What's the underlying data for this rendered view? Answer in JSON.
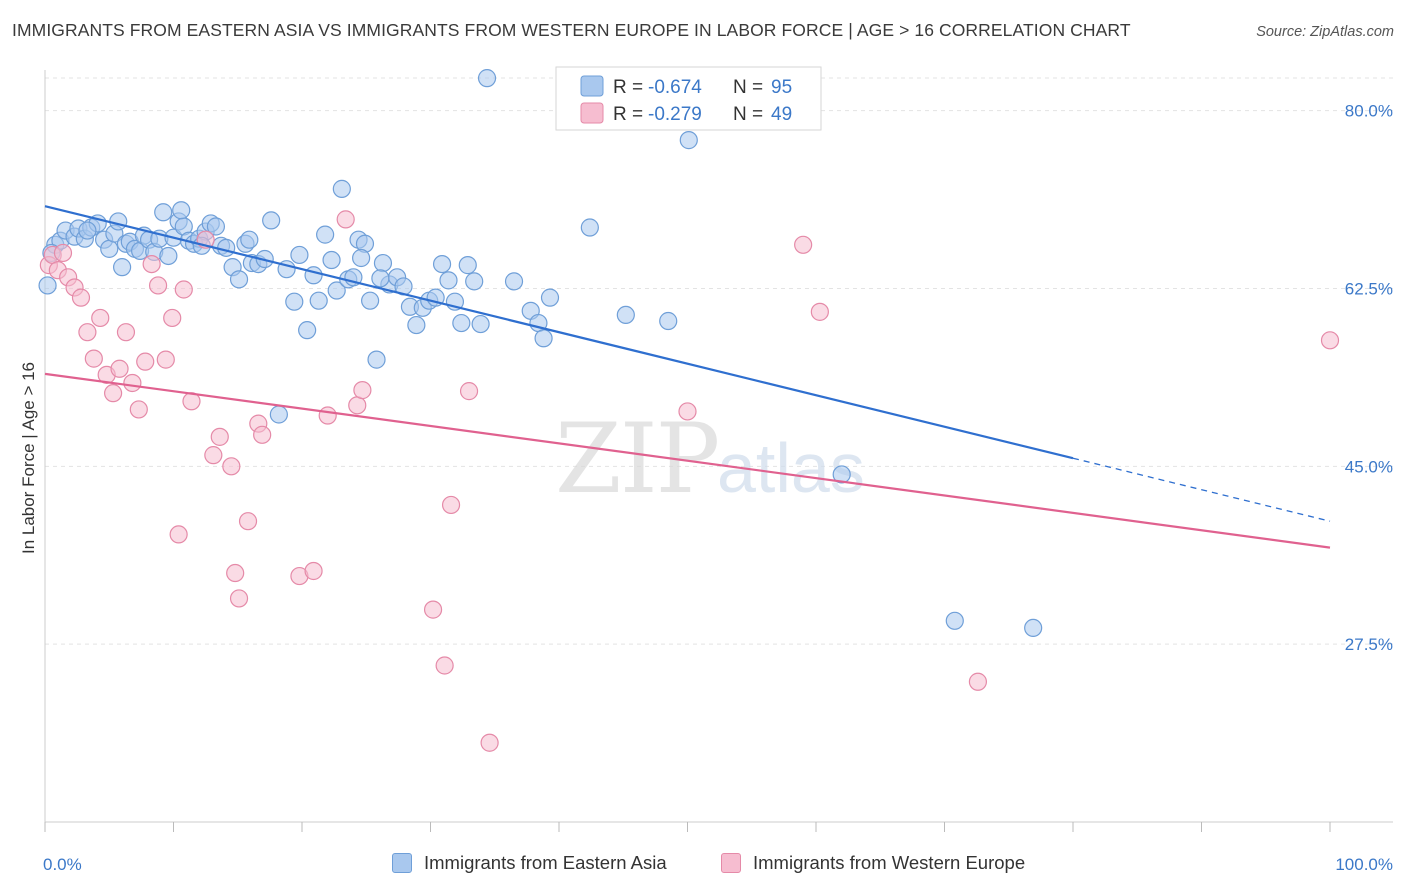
{
  "title": "IMMIGRANTS FROM EASTERN ASIA VS IMMIGRANTS FROM WESTERN EUROPE IN LABOR FORCE | AGE > 16 CORRELATION CHART",
  "source": "Source: ZipAtlas.com",
  "watermark": {
    "zip": "ZIP",
    "atlas": "atlas"
  },
  "colors": {
    "blue_fill": "#a9c8ee",
    "blue_stroke": "#6f9fd8",
    "blue_line": "#2f6fcf",
    "pink_fill": "#f6bdd0",
    "pink_stroke": "#e58aa8",
    "pink_line": "#e0618f",
    "tick_text": "#3b78c8",
    "grid": "#e3e3e3"
  },
  "legend": {
    "rows": [
      {
        "r_label": "R =",
        "r_value": "-0.674",
        "n_label": "N =",
        "n_value": "95"
      },
      {
        "r_label": "R =",
        "r_value": "-0.279",
        "n_label": "N =",
        "n_value": "49"
      }
    ]
  },
  "chart_data": {
    "type": "scatter",
    "title": "IMMIGRANTS FROM EASTERN ASIA VS IMMIGRANTS FROM WESTERN EUROPE IN LABOR FORCE | AGE > 16 CORRELATION CHART",
    "xlabel": "",
    "ylabel": "In Labor Force | Age > 16",
    "xlim": [
      0,
      100
    ],
    "ylim": [
      10,
      84
    ],
    "x_tick_labels": [
      "0.0%",
      "100.0%"
    ],
    "y_ticks": [
      27.5,
      45.0,
      62.5,
      80.0
    ],
    "y_tick_labels": [
      "27.5%",
      "45.0%",
      "62.5%",
      "80.0%"
    ],
    "grid": true,
    "legend_position": "top-center",
    "series": [
      {
        "name": "Immigrants from Eastern Asia",
        "color": "blue",
        "r": -0.674,
        "n": 95,
        "trend": {
          "x0": 0,
          "y0": 70.6,
          "x1": 80,
          "y1": 45.8,
          "dashed_to_x": 100,
          "dashed_to_y": 39.6
        },
        "points": [
          [
            0.2,
            62.8
          ],
          [
            0.8,
            66.8
          ],
          [
            1.2,
            67.2
          ],
          [
            1.6,
            68.2
          ],
          [
            2.3,
            67.6
          ],
          [
            2.6,
            68.4
          ],
          [
            3.1,
            67.4
          ],
          [
            3.6,
            68.5
          ],
          [
            4.1,
            68.9
          ],
          [
            4.6,
            67.3
          ],
          [
            5.0,
            66.4
          ],
          [
            5.4,
            67.9
          ],
          [
            5.7,
            69.1
          ],
          [
            6.0,
            64.6
          ],
          [
            6.3,
            66.9
          ],
          [
            6.6,
            67.1
          ],
          [
            7.0,
            66.4
          ],
          [
            7.4,
            66.2
          ],
          [
            7.7,
            67.7
          ],
          [
            8.1,
            67.3
          ],
          [
            8.5,
            66.1
          ],
          [
            8.9,
            67.4
          ],
          [
            9.2,
            70.0
          ],
          [
            9.6,
            65.7
          ],
          [
            10.0,
            67.5
          ],
          [
            10.4,
            69.1
          ],
          [
            10.8,
            68.6
          ],
          [
            11.2,
            67.2
          ],
          [
            11.6,
            66.9
          ],
          [
            12.0,
            67.4
          ],
          [
            12.5,
            68.1
          ],
          [
            12.9,
            68.9
          ],
          [
            13.3,
            68.6
          ],
          [
            13.7,
            66.7
          ],
          [
            14.1,
            66.5
          ],
          [
            14.6,
            64.6
          ],
          [
            15.1,
            63.4
          ],
          [
            15.6,
            66.9
          ],
          [
            16.1,
            65.0
          ],
          [
            16.6,
            64.9
          ],
          [
            17.1,
            65.4
          ],
          [
            17.6,
            69.2
          ],
          [
            18.2,
            50.1
          ],
          [
            18.8,
            64.4
          ],
          [
            19.4,
            61.2
          ],
          [
            19.8,
            65.8
          ],
          [
            20.4,
            58.4
          ],
          [
            20.9,
            63.8
          ],
          [
            21.3,
            61.3
          ],
          [
            21.8,
            67.8
          ],
          [
            22.3,
            65.3
          ],
          [
            22.7,
            62.3
          ],
          [
            23.1,
            72.3
          ],
          [
            23.6,
            63.4
          ],
          [
            24.0,
            63.6
          ],
          [
            24.4,
            67.3
          ],
          [
            24.9,
            66.9
          ],
          [
            25.3,
            61.3
          ],
          [
            25.8,
            55.5
          ],
          [
            26.3,
            65.0
          ],
          [
            26.8,
            62.9
          ],
          [
            27.4,
            63.6
          ],
          [
            27.9,
            62.7
          ],
          [
            28.4,
            60.7
          ],
          [
            28.9,
            58.9
          ],
          [
            29.4,
            60.6
          ],
          [
            29.9,
            61.3
          ],
          [
            30.4,
            61.6
          ],
          [
            30.9,
            64.9
          ],
          [
            31.4,
            63.3
          ],
          [
            31.9,
            61.2
          ],
          [
            32.4,
            59.1
          ],
          [
            32.9,
            64.8
          ],
          [
            33.4,
            63.2
          ],
          [
            33.9,
            59.0
          ],
          [
            34.4,
            83.2
          ],
          [
            36.5,
            63.2
          ],
          [
            37.8,
            60.3
          ],
          [
            38.4,
            59.1
          ],
          [
            38.8,
            57.6
          ],
          [
            39.3,
            61.6
          ],
          [
            42.4,
            68.5
          ],
          [
            45.2,
            59.9
          ],
          [
            48.5,
            59.3
          ],
          [
            50.1,
            77.1
          ],
          [
            62.0,
            44.2
          ],
          [
            70.8,
            29.8
          ],
          [
            76.9,
            29.1
          ],
          [
            0.5,
            66.0
          ],
          [
            3.3,
            68.2
          ],
          [
            10.6,
            70.2
          ],
          [
            12.2,
            66.7
          ],
          [
            15.9,
            67.3
          ],
          [
            24.6,
            65.5
          ],
          [
            26.1,
            63.5
          ]
        ]
      },
      {
        "name": "Immigrants from Western Europe",
        "color": "pink",
        "r": -0.279,
        "n": 49,
        "trend": {
          "x0": 0,
          "y0": 54.1,
          "x1": 100,
          "y1": 37.0
        },
        "points": [
          [
            0.3,
            64.8
          ],
          [
            0.6,
            65.8
          ],
          [
            1.0,
            64.3
          ],
          [
            1.4,
            66.0
          ],
          [
            1.8,
            63.6
          ],
          [
            2.3,
            62.6
          ],
          [
            2.8,
            61.6
          ],
          [
            3.3,
            58.2
          ],
          [
            3.8,
            55.6
          ],
          [
            4.3,
            59.6
          ],
          [
            4.8,
            54.0
          ],
          [
            5.3,
            52.2
          ],
          [
            5.8,
            54.6
          ],
          [
            6.3,
            58.2
          ],
          [
            6.8,
            53.2
          ],
          [
            7.3,
            50.6
          ],
          [
            7.8,
            55.3
          ],
          [
            8.3,
            64.9
          ],
          [
            8.8,
            62.8
          ],
          [
            9.4,
            55.5
          ],
          [
            9.9,
            59.6
          ],
          [
            10.4,
            38.3
          ],
          [
            10.8,
            62.4
          ],
          [
            11.4,
            51.4
          ],
          [
            12.5,
            67.3
          ],
          [
            13.1,
            46.1
          ],
          [
            13.6,
            47.9
          ],
          [
            14.5,
            45.0
          ],
          [
            14.8,
            34.5
          ],
          [
            15.1,
            32.0
          ],
          [
            15.8,
            39.6
          ],
          [
            16.6,
            49.2
          ],
          [
            16.9,
            48.1
          ],
          [
            19.8,
            34.2
          ],
          [
            20.9,
            34.7
          ],
          [
            22.0,
            50.0
          ],
          [
            23.4,
            69.3
          ],
          [
            24.3,
            51.0
          ],
          [
            24.7,
            52.5
          ],
          [
            30.2,
            30.9
          ],
          [
            31.1,
            25.4
          ],
          [
            31.6,
            41.2
          ],
          [
            33.0,
            52.4
          ],
          [
            34.6,
            17.8
          ],
          [
            50.0,
            50.4
          ],
          [
            59.0,
            66.8
          ],
          [
            60.3,
            60.2
          ],
          [
            72.6,
            23.8
          ],
          [
            100.0,
            57.4
          ]
        ]
      }
    ]
  },
  "bottom_legend": {
    "items": [
      {
        "label": "Immigrants from Eastern Asia"
      },
      {
        "label": "Immigrants from Western Europe"
      }
    ]
  }
}
